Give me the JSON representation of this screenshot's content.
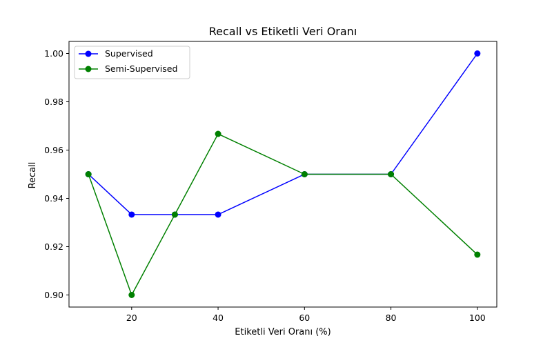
{
  "chart_data": {
    "type": "line",
    "title": "Recall vs Etiketli Veri Oranı",
    "xlabel": "Etiketli Veri Oranı (%)",
    "ylabel": "Recall",
    "x": [
      10,
      20,
      30,
      40,
      60,
      80,
      100
    ],
    "xlim": [
      5.5,
      104.5
    ],
    "ylim": [
      0.895,
      1.005
    ],
    "xticks": [
      20,
      40,
      60,
      80,
      100
    ],
    "xtick_labels": [
      "20",
      "40",
      "60",
      "80",
      "100"
    ],
    "yticks": [
      0.9,
      0.92,
      0.94,
      0.96,
      0.98,
      1.0
    ],
    "ytick_labels": [
      "0.90",
      "0.92",
      "0.94",
      "0.96",
      "0.98",
      "1.00"
    ],
    "grid": false,
    "legend_position": "top-left",
    "series": [
      {
        "name": "Supervised",
        "color": "#0000ff",
        "marker": "circle",
        "values": [
          0.95,
          0.9333,
          0.9333,
          0.9333,
          0.95,
          0.95,
          1.0
        ]
      },
      {
        "name": "Semi-Supervised",
        "color": "#008000",
        "marker": "circle",
        "values": [
          0.95,
          0.9,
          0.9333,
          0.9667,
          0.95,
          0.95,
          0.9167
        ]
      }
    ]
  }
}
